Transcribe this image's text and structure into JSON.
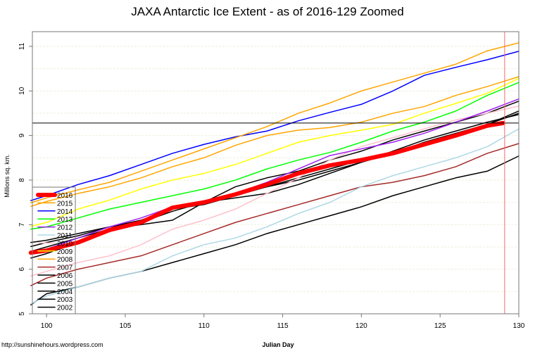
{
  "chart_data": {
    "type": "line",
    "title": "JAXA Antarctic Ice Extent - as of 2016-129 Zoomed",
    "xlabel": "Julian Day",
    "ylabel": "Millions sq. km.",
    "xlim": [
      99.1,
      130
    ],
    "ylim": [
      5,
      11.33
    ],
    "xticks": [
      100,
      105,
      110,
      115,
      120,
      125,
      130
    ],
    "yticks": [
      5,
      6,
      7,
      8,
      9,
      10,
      11
    ],
    "grid": true,
    "legend_placement": "left",
    "reference_lines": {
      "horizontal_value": 9.28,
      "horizontal_color": "#000000",
      "vertical_day": 129.1,
      "vertical_color": "#FF6666"
    },
    "x": [
      99,
      100,
      102,
      104,
      106,
      108,
      110,
      112,
      114,
      116,
      118,
      120,
      122,
      124,
      126,
      128,
      130
    ],
    "series": [
      {
        "name": "2016",
        "color": "#FF0000",
        "width": 6,
        "values": [
          6.37,
          6.42,
          6.6,
          6.88,
          7.05,
          7.38,
          7.5,
          7.68,
          7.9,
          8.15,
          8.33,
          8.45,
          8.6,
          8.8,
          9.0,
          9.22,
          null
        ],
        "last": {
          "x": 129,
          "y": 9.28
        }
      },
      {
        "name": "2015",
        "color": "#FFA500",
        "width": 1.5,
        "values": [
          7.49,
          7.6,
          7.78,
          7.95,
          8.2,
          8.45,
          8.7,
          8.95,
          9.2,
          9.5,
          9.73,
          10.0,
          10.2,
          10.4,
          10.6,
          10.9,
          11.08
        ]
      },
      {
        "name": "2014",
        "color": "#0000FF",
        "width": 1.5,
        "values": [
          7.54,
          7.65,
          7.9,
          8.1,
          8.35,
          8.6,
          8.8,
          8.97,
          9.1,
          9.33,
          9.52,
          9.7,
          10.0,
          10.35,
          10.53,
          10.7,
          10.89
        ]
      },
      {
        "name": "2013",
        "color": "#00FF00",
        "width": 1.5,
        "values": [
          6.9,
          6.95,
          7.15,
          7.35,
          7.5,
          7.65,
          7.8,
          8.0,
          8.25,
          8.45,
          8.62,
          8.85,
          9.1,
          9.3,
          9.55,
          9.9,
          10.19
        ]
      },
      {
        "name": "2012",
        "color": "#A020F0",
        "width": 1.5,
        "values": [
          6.4,
          6.45,
          6.7,
          6.95,
          7.15,
          7.4,
          7.5,
          7.7,
          7.95,
          8.25,
          8.55,
          8.7,
          8.85,
          9.05,
          9.3,
          9.55,
          9.82
        ]
      },
      {
        "name": "2011",
        "color": "#ADD8E6",
        "width": 1.5,
        "values": [
          5.22,
          5.4,
          5.6,
          5.8,
          5.95,
          6.3,
          6.55,
          6.7,
          6.95,
          7.25,
          7.5,
          7.85,
          8.1,
          8.3,
          8.5,
          8.75,
          9.15
        ]
      },
      {
        "name": "2010",
        "color": "#FFC0CB",
        "width": 1.5,
        "values": [
          5.85,
          5.95,
          6.15,
          6.3,
          6.55,
          6.9,
          7.1,
          7.35,
          7.7,
          8.05,
          8.45,
          8.75,
          8.95,
          9.15,
          9.35,
          9.5,
          9.66
        ]
      },
      {
        "name": "2009",
        "color": "#FFFF00",
        "width": 1.5,
        "values": [
          6.96,
          7.05,
          7.35,
          7.55,
          7.8,
          8.0,
          8.15,
          8.35,
          8.6,
          8.85,
          9.0,
          9.12,
          9.25,
          9.5,
          9.72,
          9.95,
          10.28
        ]
      },
      {
        "name": "2008",
        "color": "#FFA500",
        "width": 1.5,
        "values": [
          7.41,
          7.52,
          7.7,
          7.85,
          8.05,
          8.3,
          8.5,
          8.78,
          9.0,
          9.12,
          9.18,
          9.3,
          9.5,
          9.65,
          9.9,
          10.1,
          10.32
        ]
      },
      {
        "name": "2007",
        "color": "#A52A2A",
        "width": 1.5,
        "values": [
          5.63,
          5.8,
          6.0,
          6.15,
          6.3,
          6.55,
          6.8,
          7.05,
          7.25,
          7.45,
          7.65,
          7.85,
          7.95,
          8.1,
          8.3,
          8.6,
          8.82
        ]
      },
      {
        "name": "2006",
        "color": "#000000",
        "width": 1.5,
        "values": [
          6.51,
          6.6,
          6.75,
          6.95,
          7.05,
          7.4,
          7.5,
          7.85,
          8.05,
          8.2,
          8.45,
          8.65,
          8.9,
          9.1,
          9.3,
          9.5,
          9.77
        ]
      },
      {
        "name": "2005",
        "color": "#000000",
        "width": 1.5,
        "values": [
          6.25,
          6.35,
          6.6,
          6.85,
          7.05,
          7.3,
          7.5,
          7.7,
          7.85,
          8.05,
          8.25,
          8.45,
          8.6,
          8.8,
          9.0,
          9.25,
          9.55
        ]
      },
      {
        "name": "2004",
        "color": "#000000",
        "width": 1.5,
        "values": [
          6.4,
          6.5,
          6.7,
          6.9,
          7.0,
          7.1,
          7.5,
          7.6,
          7.7,
          7.9,
          8.15,
          8.4,
          8.65,
          8.9,
          9.1,
          9.3,
          9.47
        ]
      },
      {
        "name": "2003",
        "color": "#000000",
        "width": 1.5,
        "values": [
          6.6,
          6.65,
          6.8,
          6.95,
          7.1,
          7.35,
          7.45,
          7.65,
          7.85,
          8.0,
          8.2,
          8.4,
          8.6,
          8.85,
          9.05,
          9.25,
          9.5
        ]
      },
      {
        "name": "2002",
        "color": "#000000",
        "width": 1.5,
        "values": [
          5.2,
          5.45,
          5.6,
          5.8,
          5.95,
          6.15,
          6.35,
          6.55,
          6.8,
          7.0,
          7.2,
          7.4,
          7.65,
          7.85,
          8.05,
          8.2,
          8.54
        ]
      }
    ]
  },
  "footer": {
    "source": "http://sunshinehours.wordpress.com"
  }
}
